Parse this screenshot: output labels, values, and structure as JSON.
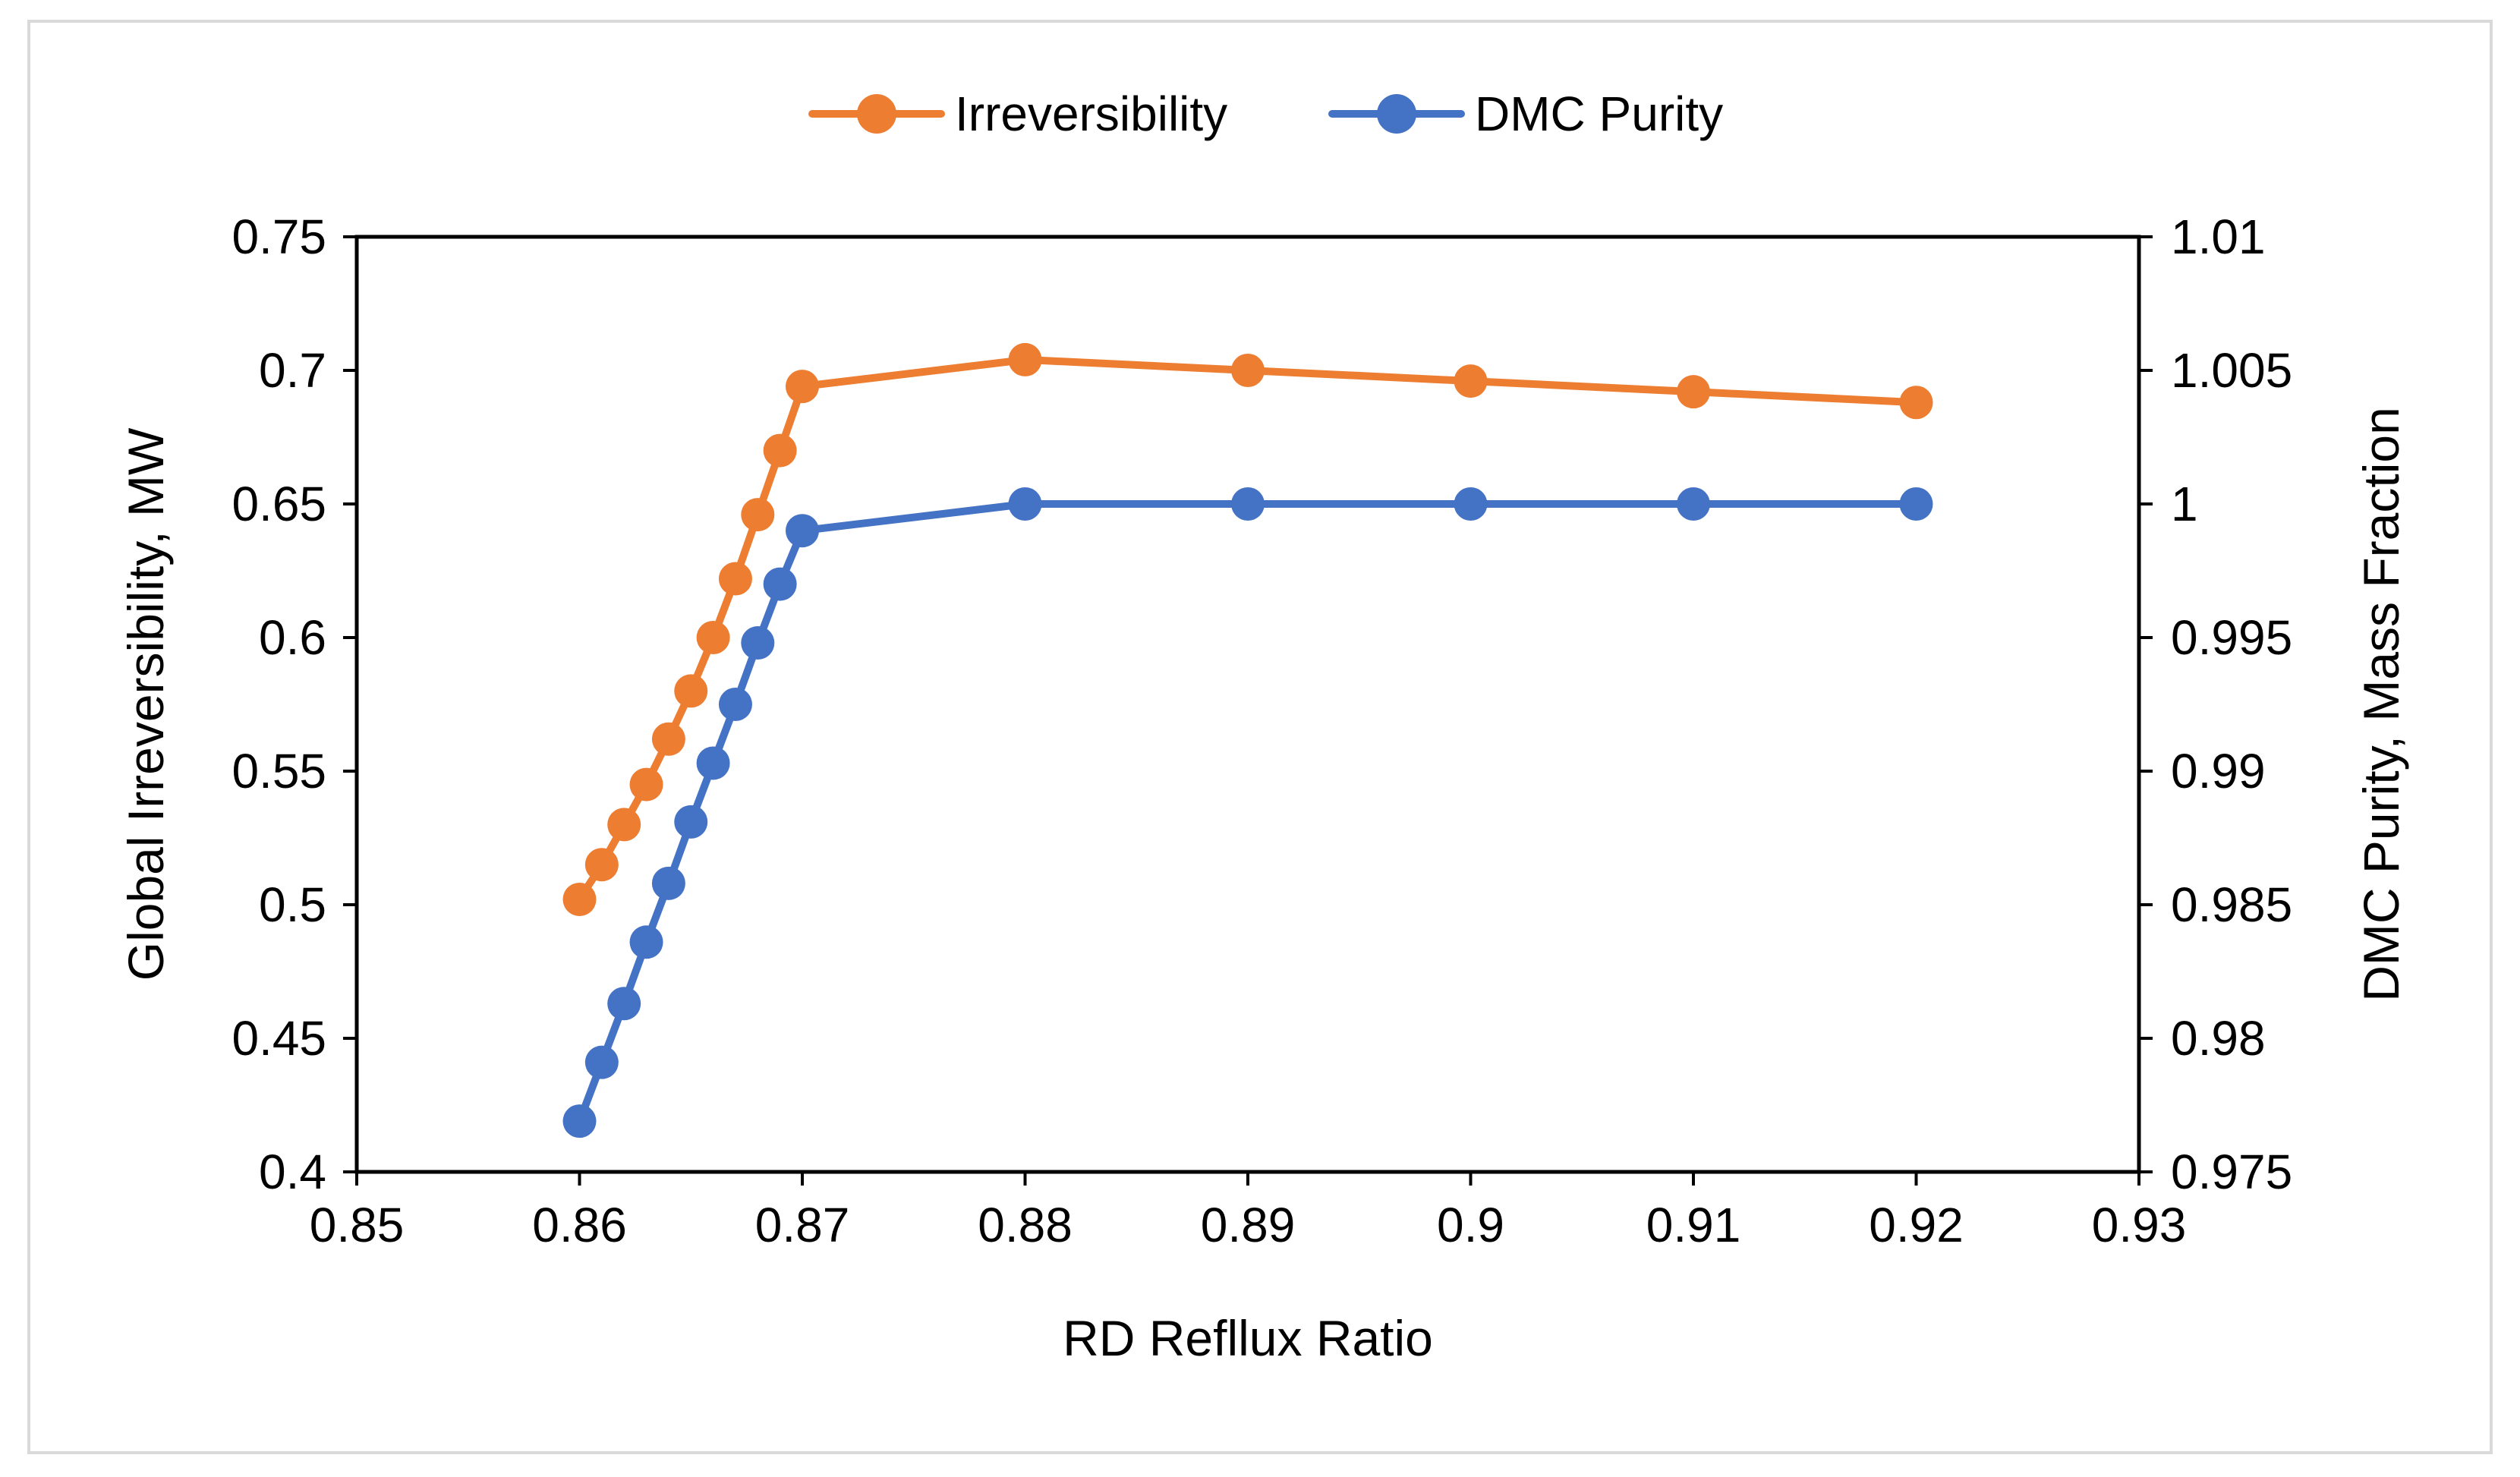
{
  "chart_data": {
    "type": "line",
    "title": "",
    "xlabel": "RD Refllux Ratio",
    "ylabel_left": "Global Irreversibility, MW",
    "ylabel_right": "DMC Purity, Mass Fraction",
    "xlim": [
      0.85,
      0.93
    ],
    "ylim_left": [
      0.4,
      0.75
    ],
    "ylim_right": [
      0.975,
      1.01
    ],
    "x_ticks": [
      "0.85",
      "0.86",
      "0.87",
      "0.88",
      "0.89",
      "0.9",
      "0.91",
      "0.92",
      "0.93"
    ],
    "y_ticks_left": [
      "0.4",
      "0.45",
      "0.5",
      "0.55",
      "0.6",
      "0.65",
      "0.7",
      "0.75"
    ],
    "y_ticks_right": [
      "0.975",
      "0.98",
      "0.985",
      "0.99",
      "0.995",
      "1",
      "1.005",
      "1.01"
    ],
    "grid": false,
    "legend_position": "top-center",
    "series": [
      {
        "name": "Irreversibility",
        "axis": "left",
        "color": "#ED7D31",
        "x": [
          0.86,
          0.861,
          0.862,
          0.863,
          0.864,
          0.865,
          0.866,
          0.867,
          0.868,
          0.869,
          0.87,
          0.88,
          0.89,
          0.9,
          0.91,
          0.92
        ],
        "values": [
          0.502,
          0.515,
          0.53,
          0.545,
          0.562,
          0.58,
          0.6,
          0.622,
          0.646,
          0.67,
          0.694,
          0.704,
          0.7,
          0.696,
          0.692,
          0.688
        ]
      },
      {
        "name": "DMC Purity",
        "axis": "right",
        "color": "#4472C4",
        "x": [
          0.86,
          0.861,
          0.862,
          0.863,
          0.864,
          0.865,
          0.866,
          0.867,
          0.868,
          0.869,
          0.87,
          0.88,
          0.89,
          0.9,
          0.91,
          0.92
        ],
        "values": [
          0.9769,
          0.9791,
          0.9813,
          0.9836,
          0.9858,
          0.9881,
          0.9903,
          0.9925,
          0.9948,
          0.997,
          0.999,
          1.0,
          1.0,
          1.0,
          1.0,
          1.0
        ]
      }
    ]
  }
}
